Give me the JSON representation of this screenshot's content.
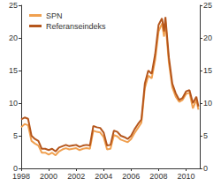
{
  "chart_data": {
    "type": "line",
    "x": [
      1998.0,
      1998.25,
      1998.5,
      1998.75,
      1999.0,
      1999.25,
      1999.5,
      1999.75,
      2000.0,
      2000.25,
      2000.5,
      2000.75,
      2001.0,
      2001.25,
      2001.5,
      2001.75,
      2002.0,
      2002.25,
      2002.5,
      2002.75,
      2003.0,
      2003.25,
      2003.5,
      2003.75,
      2004.0,
      2004.25,
      2004.5,
      2004.75,
      2005.0,
      2005.25,
      2005.5,
      2005.75,
      2006.0,
      2006.25,
      2006.5,
      2006.75,
      2007.0,
      2007.25,
      2007.5,
      2007.75,
      2008.0,
      2008.25,
      2008.4,
      2008.5,
      2008.75,
      2009.0,
      2009.25,
      2009.5,
      2009.75,
      2010.0,
      2010.25,
      2010.5,
      2010.75,
      2010.9
    ],
    "series": [
      {
        "name": "SPN",
        "color": "#f0a050",
        "values": [
          6.3,
          6.8,
          6.6,
          4.2,
          3.8,
          3.5,
          2.4,
          2.4,
          2.1,
          2.4,
          2.0,
          2.6,
          2.9,
          3.1,
          2.9,
          3.0,
          3.1,
          2.8,
          3.0,
          3.1,
          3.0,
          5.8,
          5.6,
          5.5,
          4.8,
          2.9,
          3.0,
          5.1,
          4.9,
          4.4,
          4.2,
          4.0,
          4.5,
          5.4,
          6.2,
          7.0,
          12.3,
          14.2,
          13.8,
          16.6,
          21.0,
          22.2,
          20.2,
          22.5,
          16.2,
          12.4,
          11.0,
          10.2,
          10.5,
          11.4,
          11.6,
          9.2,
          10.5,
          9.0
        ]
      },
      {
        "name": "Referanseindeks",
        "color": "#b5561c",
        "values": [
          7.5,
          7.8,
          7.6,
          5.0,
          4.5,
          4.2,
          3.0,
          3.0,
          2.8,
          3.0,
          2.6,
          3.2,
          3.4,
          3.6,
          3.4,
          3.5,
          3.6,
          3.3,
          3.5,
          3.6,
          3.5,
          6.5,
          6.3,
          6.2,
          5.5,
          3.5,
          3.6,
          5.8,
          5.6,
          5.0,
          4.8,
          4.5,
          5.0,
          6.0,
          6.8,
          7.5,
          13.0,
          15.0,
          14.5,
          17.5,
          22.0,
          23.0,
          21.0,
          23.2,
          17.0,
          13.0,
          11.5,
          10.5,
          10.8,
          11.8,
          12.0,
          10.0,
          11.0,
          9.5
        ]
      }
    ],
    "xlim": [
      1998,
      2011
    ],
    "xticks": [
      1998,
      2000,
      2002,
      2004,
      2006,
      2008,
      2010
    ],
    "ylim": [
      0,
      25
    ],
    "yticks": [
      0,
      5,
      10,
      15,
      20,
      25
    ],
    "y2lim": [
      0,
      25
    ],
    "y2ticks": [
      0,
      5,
      10,
      15,
      20,
      25
    ],
    "legend": "upper left",
    "grid": false
  }
}
